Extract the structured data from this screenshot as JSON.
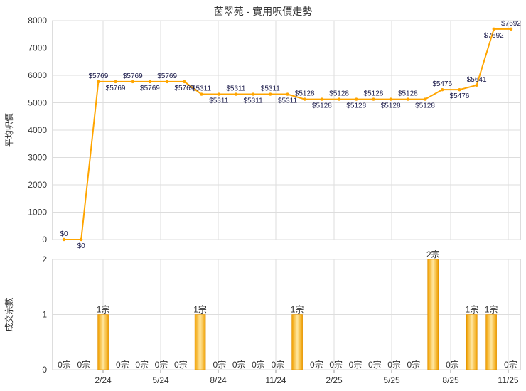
{
  "chart_data": [
    {
      "type": "line",
      "title": "茵翠苑 - 實用呎價走勢",
      "ylabel": "平均呎價",
      "ylim": [
        0,
        8000
      ],
      "yticks": [
        "0",
        "1000",
        "2000",
        "3000",
        "4000",
        "5000",
        "6000",
        "7000",
        "8000"
      ],
      "x_tick_labels": [
        "2/24",
        "5/24",
        "8/24",
        "11/24",
        "2/25",
        "5/25",
        "8/25",
        "11/25"
      ],
      "values": [
        0,
        0,
        5769,
        5769,
        5769,
        5769,
        5769,
        5769,
        5311,
        5311,
        5311,
        5311,
        5311,
        5311,
        5128,
        5128,
        5128,
        5128,
        5128,
        5128,
        5128,
        5128,
        5476,
        5476,
        5641,
        7692,
        7692
      ],
      "point_labels": [
        "$0",
        "$0",
        "$5769",
        "$5769",
        "$5769",
        "$5769",
        "$5769",
        "$5769",
        "$5311",
        "$5311",
        "$5311",
        "$5311",
        "$5311",
        "$5311",
        "$5128",
        "$5128",
        "$5128",
        "$5128",
        "$5128",
        "$5128",
        "$5128",
        "$5128",
        "$5476",
        "$5476",
        "$5641",
        "$7692",
        "$7692"
      ],
      "grid": true,
      "color": "#FFA500"
    },
    {
      "type": "bar",
      "ylabel": "成交宗數",
      "ylim": [
        0,
        2
      ],
      "yticks": [
        "0",
        "1",
        "2"
      ],
      "x_tick_labels": [
        "2/24",
        "5/24",
        "8/24",
        "11/24",
        "2/25",
        "5/25",
        "8/25",
        "11/25"
      ],
      "values": [
        0,
        0,
        1,
        0,
        0,
        0,
        0,
        1,
        0,
        0,
        0,
        0,
        1,
        0,
        0,
        0,
        0,
        0,
        0,
        2,
        0,
        1,
        1,
        0
      ],
      "bar_labels": [
        "0宗",
        "0宗",
        "1宗",
        "0宗",
        "0宗",
        "0宗",
        "0宗",
        "1宗",
        "0宗",
        "0宗",
        "0宗",
        "0宗",
        "1宗",
        "0宗",
        "0宗",
        "0宗",
        "0宗",
        "0宗",
        "0宗",
        "2宗",
        "0宗",
        "1宗",
        "1宗",
        "0宗"
      ],
      "grid": true,
      "color": "#FFA500"
    }
  ]
}
